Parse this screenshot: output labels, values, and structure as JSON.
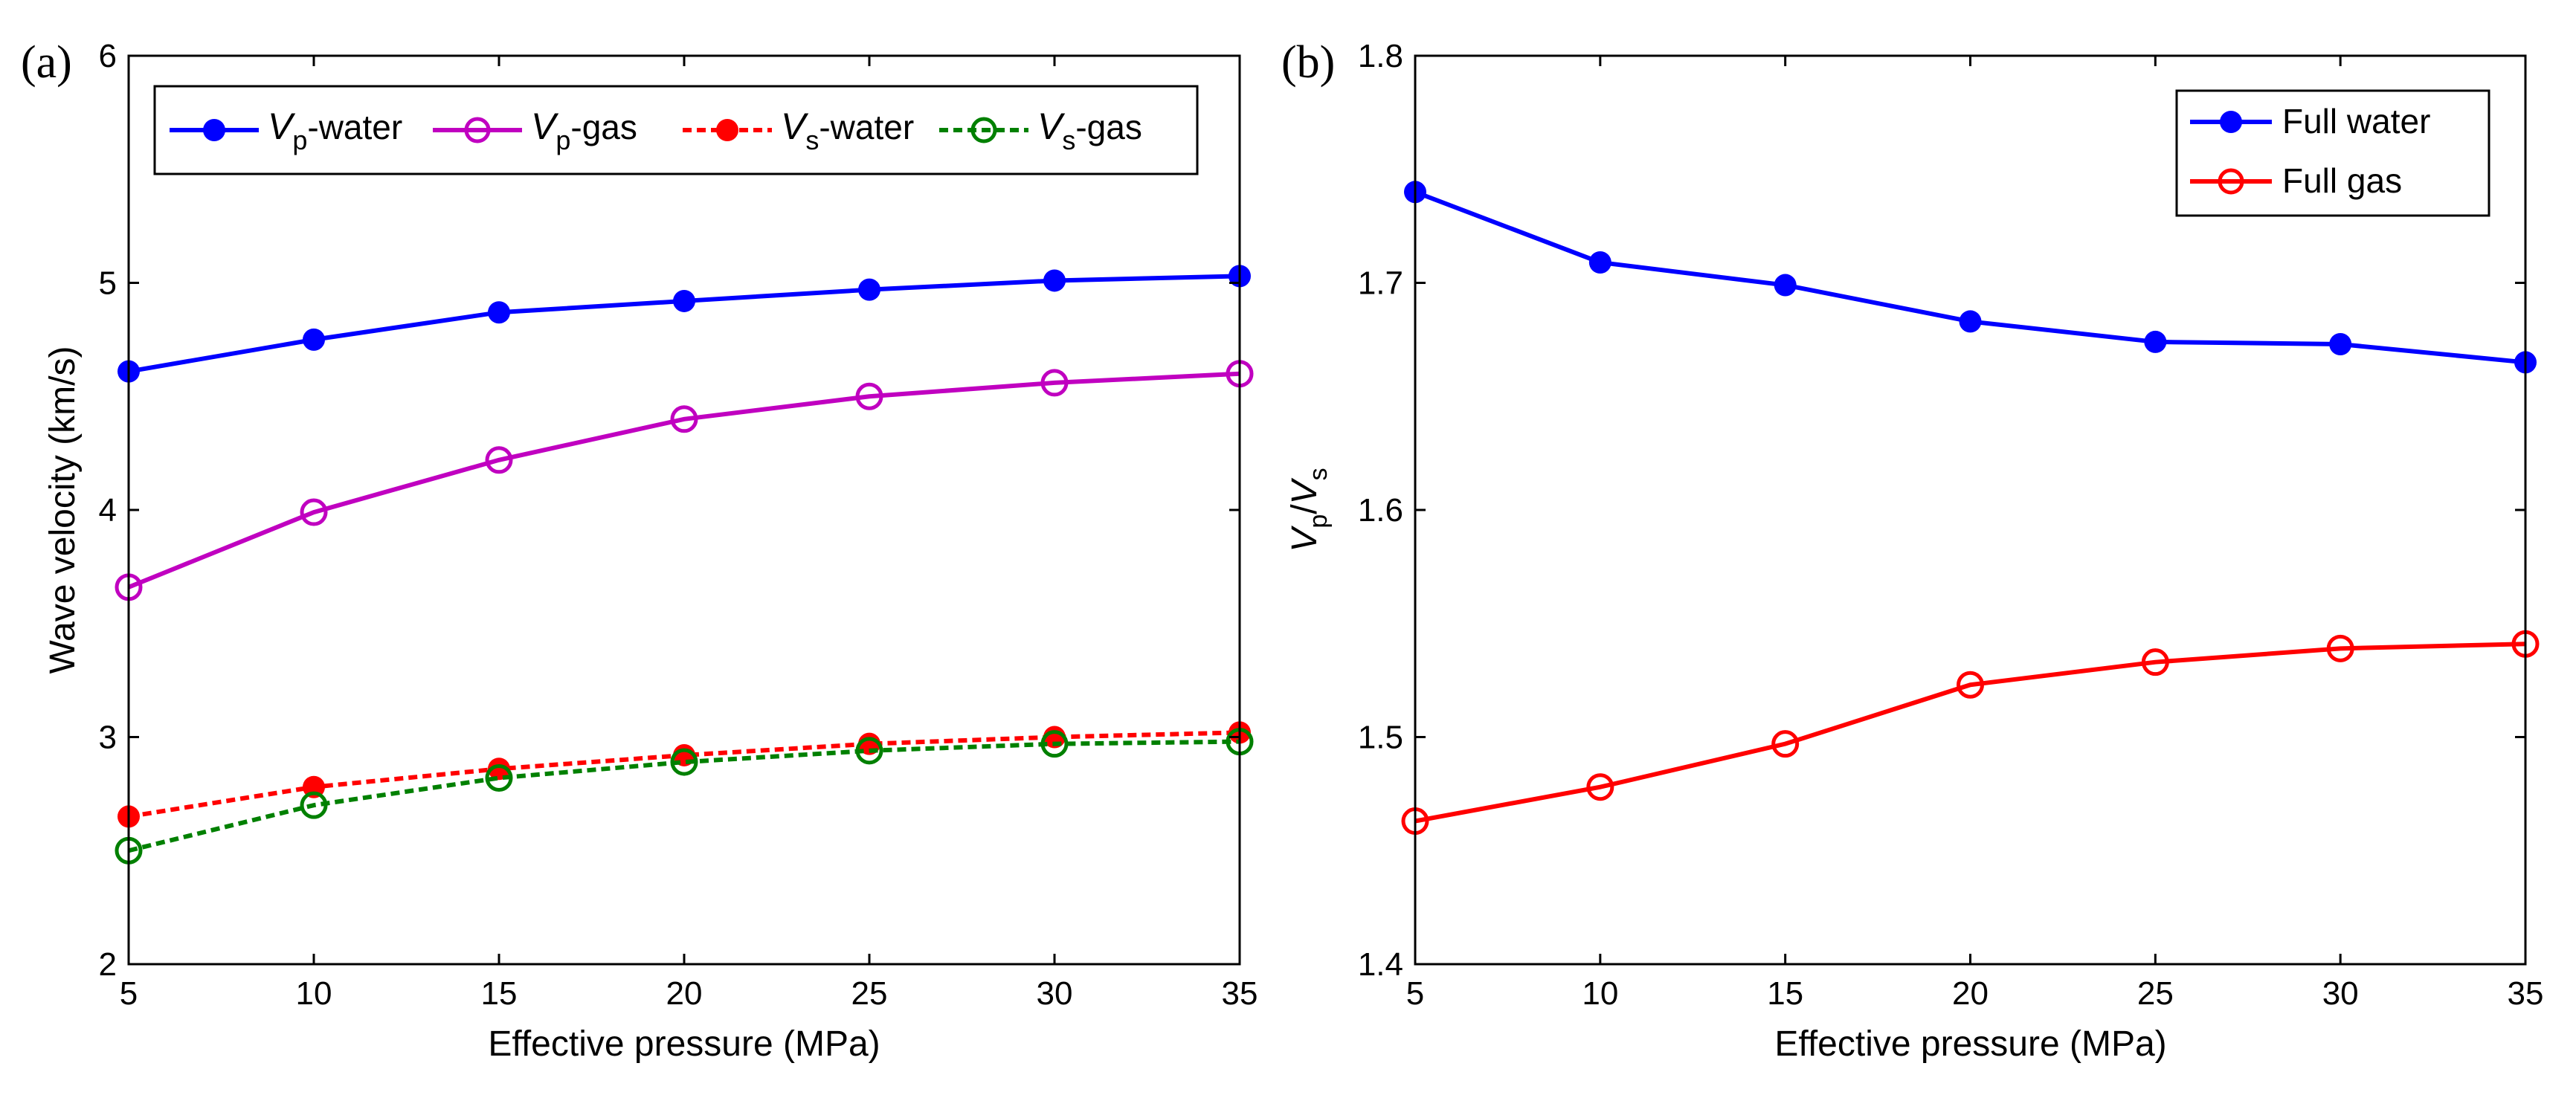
{
  "chart_data": [
    {
      "panel": "(a)",
      "type": "line",
      "xlabel": "Effective pressure (MPa)",
      "ylabel": "Wave velocity (km/s)",
      "xlim": [
        5,
        35
      ],
      "ylim": [
        2,
        6
      ],
      "xticks": [
        5,
        10,
        15,
        20,
        25,
        30,
        35
      ],
      "yticks": [
        2,
        3,
        4,
        5,
        6
      ],
      "x": [
        5,
        10,
        15,
        20,
        25,
        30,
        35
      ],
      "legend_location": "top",
      "series": [
        {
          "name": "Vp-water",
          "symbol": "V",
          "sub": "p",
          "suffix": "-water",
          "color": "#0000ff",
          "marker": "filled",
          "dashed": false,
          "values": [
            4.61,
            4.75,
            4.87,
            4.92,
            4.97,
            5.01,
            5.03
          ]
        },
        {
          "name": "Vp-gas",
          "symbol": "V",
          "sub": "p",
          "suffix": "-gas",
          "color": "#c000c0",
          "marker": "open",
          "dashed": false,
          "values": [
            3.66,
            3.99,
            4.22,
            4.4,
            4.5,
            4.56,
            4.6
          ]
        },
        {
          "name": "Vs-water",
          "symbol": "V",
          "sub": "s",
          "suffix": "-water",
          "color": "#ff0000",
          "marker": "filled",
          "dashed": true,
          "values": [
            2.65,
            2.78,
            2.86,
            2.92,
            2.97,
            3.0,
            3.02
          ]
        },
        {
          "name": "Vs-gas",
          "symbol": "V",
          "sub": "s",
          "suffix": "-gas",
          "color": "#008000",
          "marker": "open",
          "dashed": true,
          "values": [
            2.5,
            2.7,
            2.82,
            2.89,
            2.94,
            2.97,
            2.98
          ]
        }
      ]
    },
    {
      "panel": "(b)",
      "type": "line",
      "xlabel": "Effective pressure (MPa)",
      "ylabel_parts": {
        "v1": "V",
        "s1": "p",
        "slash": "/",
        "v2": "V",
        "s2": "s"
      },
      "xlim": [
        5,
        35
      ],
      "ylim": [
        1.4,
        1.8
      ],
      "xticks": [
        5,
        10,
        15,
        20,
        25,
        30,
        35
      ],
      "yticks": [
        1.4,
        1.5,
        1.6,
        1.7,
        1.8
      ],
      "x": [
        5,
        10,
        15,
        20,
        25,
        30,
        35
      ],
      "legend_location": "top-right",
      "series": [
        {
          "name": "Full water",
          "color": "#0000ff",
          "marker": "filled",
          "dashed": false,
          "values": [
            1.74,
            1.709,
            1.699,
            1.683,
            1.674,
            1.673,
            1.665
          ]
        },
        {
          "name": "Full gas",
          "color": "#ff0000",
          "marker": "open",
          "dashed": false,
          "values": [
            1.463,
            1.478,
            1.497,
            1.523,
            1.533,
            1.539,
            1.541
          ]
        }
      ]
    }
  ]
}
